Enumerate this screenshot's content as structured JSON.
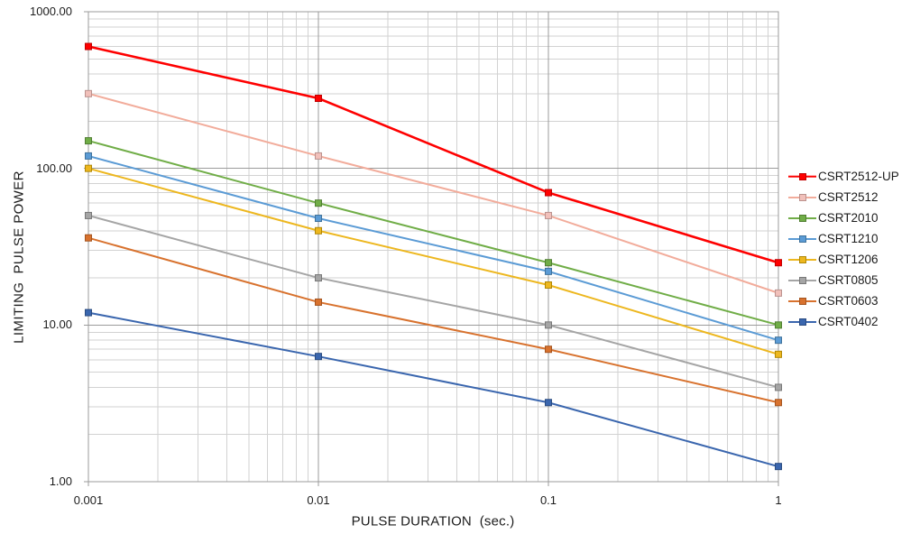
{
  "page": {
    "background": "#ffffff"
  },
  "style": {
    "grid_minor": "#d2d2d2",
    "grid_major": "#9b9b9b",
    "plot_border": "#9b9b9b",
    "tick_color": "#9b9b9b",
    "text_color": "#1c1c1c"
  },
  "chart_data": {
    "type": "line",
    "x_scale": "log",
    "y_scale": "log",
    "xlabel": "PULSE DURATION  (sec.)",
    "ylabel": "LIMITING  PULSE POWER",
    "xlim": [
      0.001,
      1
    ],
    "ylim": [
      1,
      1000
    ],
    "grid": {
      "major": true,
      "minor": true
    },
    "legend_position": "right",
    "x": [
      0.001,
      0.01,
      0.1,
      1
    ],
    "x_ticks": [
      {
        "value": 0.001,
        "label": "0.001"
      },
      {
        "value": 0.01,
        "label": "0.01"
      },
      {
        "value": 0.1,
        "label": "0.1"
      },
      {
        "value": 1,
        "label": "1"
      }
    ],
    "y_ticks": [
      {
        "value": 1000,
        "label": "1000.00"
      },
      {
        "value": 100,
        "label": "100.00"
      },
      {
        "value": 10,
        "label": "10.00"
      },
      {
        "value": 1,
        "label": "1.00"
      }
    ],
    "series": [
      {
        "name": "CSRT2512-UP",
        "color": "#fe0000",
        "marker_border": "#c00000",
        "line_width": 2.6,
        "values": [
          600,
          280,
          70,
          25
        ]
      },
      {
        "name": "CSRT2512",
        "color": "#f2ac9b",
        "marker_fill": "#f1c0ba",
        "marker_border": "#bb928e",
        "line_width": 2,
        "values": [
          300,
          120,
          50,
          16
        ]
      },
      {
        "name": "CSRT2010",
        "color": "#70ad47",
        "marker_border": "#507e32",
        "line_width": 2,
        "values": [
          150,
          60,
          25,
          10
        ]
      },
      {
        "name": "CSRT1210",
        "color": "#5b9bd5",
        "marker_border": "#3f729b",
        "line_width": 2,
        "values": [
          120,
          48,
          22,
          8
        ]
      },
      {
        "name": "CSRT1206",
        "color": "#edb71f",
        "marker_border": "#b08705",
        "line_width": 2,
        "values": [
          100,
          40,
          18,
          6.5
        ]
      },
      {
        "name": "CSRT0805",
        "color": "#a5a5a5",
        "marker_border": "#787878",
        "line_width": 2,
        "values": [
          50,
          20,
          10,
          4
        ]
      },
      {
        "name": "CSRT0603",
        "color": "#d8722e",
        "marker_border": "#a4541f",
        "line_width": 2,
        "values": [
          36,
          14,
          7,
          3.2
        ]
      },
      {
        "name": "CSRT0402",
        "color": "#3a66ae",
        "marker_border": "#2a4b80",
        "line_width": 2,
        "values": [
          12,
          6.3,
          3.2,
          1.25
        ]
      }
    ]
  }
}
